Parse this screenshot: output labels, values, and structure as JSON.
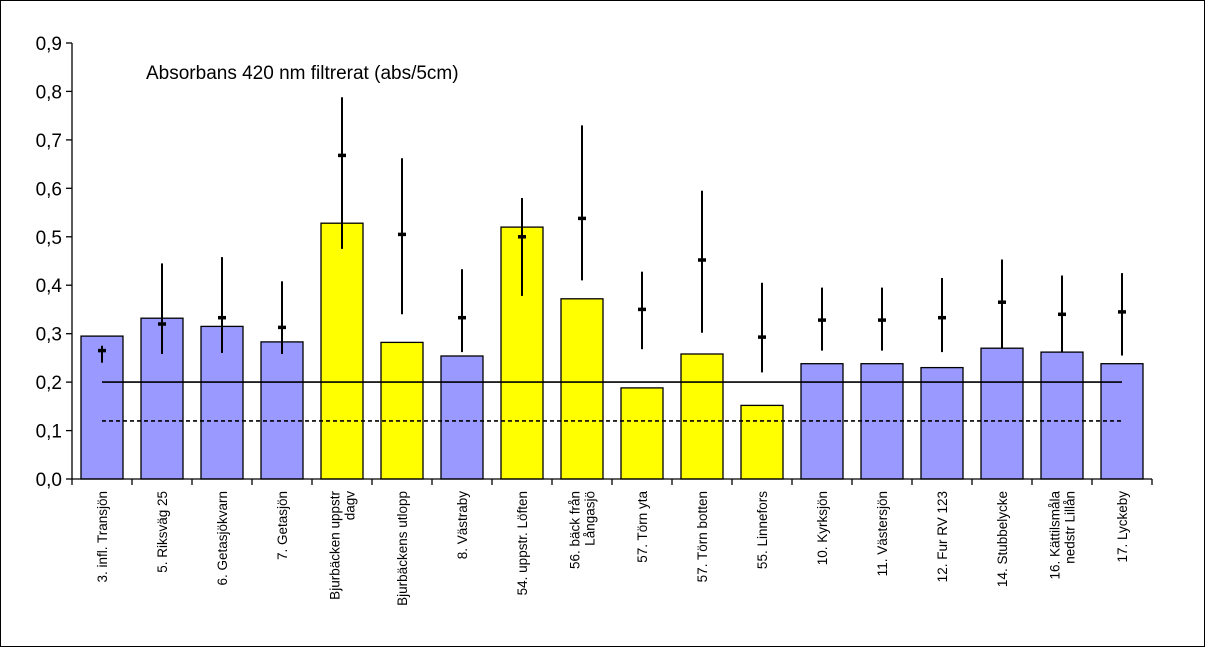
{
  "chart_data": {
    "type": "bar",
    "title": "Absorbans 420 nm filtrerat (abs/5cm)",
    "xlabel": "",
    "ylabel": "",
    "ylim": [
      0,
      0.9
    ],
    "yticks": [
      "0,0",
      "0,1",
      "0,2",
      "0,3",
      "0,4",
      "0,5",
      "0,6",
      "0,7",
      "0,8",
      "0,9"
    ],
    "grid": false,
    "legend": "none",
    "categories": [
      [
        "3. infl. Transjön"
      ],
      [
        "5. Riksväg 25"
      ],
      [
        "6. Getasjökvarn"
      ],
      [
        "7. Getasjön"
      ],
      [
        "Bjurbäcken uppstr",
        "dagv"
      ],
      [
        "Bjurbäckens utlopp"
      ],
      [
        "8. Västraby"
      ],
      [
        "54. uppstr. Löften"
      ],
      [
        "56. bäck från",
        "Långasjö"
      ],
      [
        "57. Törn yta"
      ],
      [
        "57. Törn botten"
      ],
      [
        "55. Linnefors"
      ],
      [
        "10. Kyrksjön"
      ],
      [
        "11. Västersjön"
      ],
      [
        "12. Fur RV 123"
      ],
      [
        "14. Stubbelycke"
      ],
      [
        "16. Kättilsmåla",
        "nedstr Lillån"
      ],
      [
        "17. Lyckeby"
      ]
    ],
    "values": [
      0.295,
      0.332,
      0.315,
      0.283,
      0.528,
      0.282,
      0.254,
      0.52,
      0.372,
      0.188,
      0.258,
      0.152,
      0.238,
      0.238,
      0.23,
      0.27,
      0.262,
      0.238
    ],
    "bar_colors": [
      "#9999ff",
      "#9999ff",
      "#9999ff",
      "#9999ff",
      "#ffff00",
      "#ffff00",
      "#9999ff",
      "#ffff00",
      "#ffff00",
      "#ffff00",
      "#ffff00",
      "#ffff00",
      "#9999ff",
      "#9999ff",
      "#9999ff",
      "#9999ff",
      "#9999ff",
      "#9999ff"
    ],
    "ranges": [
      {
        "mean": 0.265,
        "min": 0.24,
        "max": 0.275
      },
      {
        "mean": 0.32,
        "min": 0.258,
        "max": 0.445
      },
      {
        "mean": 0.333,
        "min": 0.26,
        "max": 0.458
      },
      {
        "mean": 0.313,
        "min": 0.258,
        "max": 0.408
      },
      {
        "mean": 0.668,
        "min": 0.475,
        "max": 0.788
      },
      {
        "mean": 0.505,
        "min": 0.34,
        "max": 0.662
      },
      {
        "mean": 0.333,
        "min": 0.262,
        "max": 0.433
      },
      {
        "mean": 0.5,
        "min": 0.378,
        "max": 0.58
      },
      {
        "mean": 0.538,
        "min": 0.41,
        "max": 0.73
      },
      {
        "mean": 0.35,
        "min": 0.268,
        "max": 0.428
      },
      {
        "mean": 0.452,
        "min": 0.302,
        "max": 0.595
      },
      {
        "mean": 0.293,
        "min": 0.22,
        "max": 0.405
      },
      {
        "mean": 0.328,
        "min": 0.265,
        "max": 0.395
      },
      {
        "mean": 0.328,
        "min": 0.265,
        "max": 0.395
      },
      {
        "mean": 0.333,
        "min": 0.262,
        "max": 0.415
      },
      {
        "mean": 0.365,
        "min": 0.27,
        "max": 0.453
      },
      {
        "mean": 0.34,
        "min": 0.262,
        "max": 0.42
      },
      {
        "mean": 0.345,
        "min": 0.255,
        "max": 0.425
      }
    ],
    "reference_lines": [
      {
        "style": "solid",
        "value": 0.2
      },
      {
        "style": "dashed",
        "value": 0.12
      }
    ],
    "colors": {
      "blue_bar": "#9999ff",
      "yellow_bar": "#ffff00",
      "axis": "#000000"
    }
  }
}
